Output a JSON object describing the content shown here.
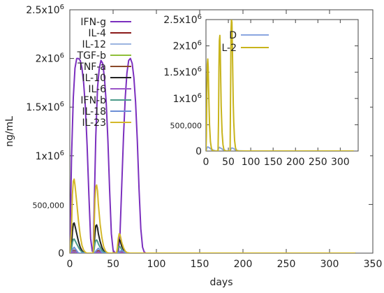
{
  "chart_data": [
    {
      "type": "line",
      "xlabel": "days",
      "ylabel": "ng/mL",
      "xlim": [
        0,
        350
      ],
      "ylim": [
        0,
        2500000
      ],
      "x_ticks": [
        0,
        50,
        100,
        150,
        200,
        250,
        300,
        350
      ],
      "y_ticks": [
        {
          "value": 0,
          "label": "0"
        },
        {
          "value": 500000,
          "label": "500,000"
        },
        {
          "value": 1000000,
          "label": "1x10",
          "exp": "6"
        },
        {
          "value": 1500000,
          "label": "1.5x10",
          "exp": "6"
        },
        {
          "value": 2000000,
          "label": "2x10",
          "exp": "6"
        },
        {
          "value": 2500000,
          "label": "2.5x10",
          "exp": "6"
        }
      ],
      "grid": false,
      "legend_position": "top-left",
      "series": [
        {
          "name": "IFN-g",
          "color": "#7b2fbe",
          "x": [
            0,
            2,
            4,
            6,
            8,
            10,
            12,
            14,
            16,
            18,
            20,
            22,
            24,
            26,
            27,
            28,
            30,
            32,
            34,
            36,
            38,
            40,
            42,
            44,
            46,
            48,
            50,
            52,
            54,
            55,
            56,
            58,
            60,
            62,
            64,
            66,
            68,
            70,
            72,
            74,
            76,
            78,
            80,
            82,
            84,
            86,
            88,
            90,
            95,
            100,
            330
          ],
          "y": [
            0,
            1000000,
            1600000,
            1900000,
            2000000,
            2000000,
            1980000,
            1900000,
            1750000,
            1500000,
            1100000,
            600000,
            150000,
            20000,
            10000,
            400000,
            1200000,
            1700000,
            1900000,
            1980000,
            1950000,
            1800000,
            1550000,
            1150000,
            650000,
            200000,
            30000,
            5000,
            0,
            0,
            0,
            200000,
            700000,
            1200000,
            1600000,
            1850000,
            1980000,
            2000000,
            1950000,
            1800000,
            1550000,
            1150000,
            650000,
            250000,
            60000,
            10000,
            0,
            0,
            0,
            0,
            0
          ]
        },
        {
          "name": "IL-4",
          "color": "#8b1a1a",
          "x": [
            0,
            5,
            10,
            28,
            33,
            38,
            55,
            60,
            65,
            330
          ],
          "y": [
            0,
            30000,
            0,
            0,
            25000,
            0,
            0,
            20000,
            0,
            0
          ]
        },
        {
          "name": "IL-12",
          "color": "#9bb4e0",
          "x": [
            0,
            5,
            10,
            28,
            33,
            38,
            55,
            60,
            65,
            330
          ],
          "y": [
            0,
            20000,
            0,
            0,
            15000,
            0,
            0,
            10000,
            0,
            0
          ]
        },
        {
          "name": "TGF-b",
          "color": "#8fbf3a",
          "x": [
            0,
            5,
            10,
            28,
            33,
            38,
            55,
            60,
            65,
            330
          ],
          "y": [
            0,
            10000,
            0,
            0,
            8000,
            0,
            0,
            6000,
            0,
            0
          ]
        },
        {
          "name": "TNF-a",
          "color": "#8b4a2a",
          "x": [
            0,
            5,
            10,
            28,
            33,
            38,
            55,
            60,
            65,
            330
          ],
          "y": [
            0,
            15000,
            0,
            0,
            12000,
            0,
            0,
            8000,
            0,
            0
          ]
        },
        {
          "name": "IL-10",
          "color": "#222222",
          "x": [
            0,
            2,
            3,
            4,
            5,
            6,
            8,
            10,
            12,
            14,
            16,
            18,
            20,
            27,
            28,
            29,
            30,
            31,
            32,
            33,
            35,
            37,
            39,
            41,
            43,
            45,
            47,
            54,
            55,
            56,
            57,
            58,
            59,
            60,
            62,
            64,
            66,
            68,
            70,
            72,
            330
          ],
          "y": [
            0,
            80000,
            220000,
            300000,
            310000,
            280000,
            200000,
            120000,
            60000,
            25000,
            8000,
            2000,
            0,
            0,
            70000,
            200000,
            280000,
            290000,
            260000,
            200000,
            120000,
            60000,
            25000,
            8000,
            2000,
            0,
            0,
            0,
            40000,
            110000,
            140000,
            130000,
            100000,
            70000,
            35000,
            12000,
            4000,
            1000,
            0,
            0,
            0
          ]
        },
        {
          "name": "IL-6",
          "color": "#9b55c8",
          "x": [
            0,
            5,
            10,
            28,
            33,
            38,
            55,
            60,
            65,
            330
          ],
          "y": [
            0,
            12000,
            0,
            0,
            9000,
            0,
            0,
            6000,
            0,
            0
          ]
        },
        {
          "name": "IFN-b",
          "color": "#4a9a8a",
          "x": [
            0,
            2,
            3,
            4,
            5,
            6,
            8,
            10,
            12,
            14,
            16,
            18,
            20,
            27,
            28,
            29,
            30,
            31,
            32,
            33,
            35,
            37,
            39,
            41,
            43,
            45,
            47,
            54,
            55,
            56,
            57,
            58,
            59,
            60,
            62,
            64,
            66,
            68,
            70,
            72,
            330
          ],
          "y": [
            0,
            40000,
            110000,
            140000,
            145000,
            130000,
            95000,
            60000,
            30000,
            12000,
            4000,
            1000,
            0,
            0,
            35000,
            100000,
            130000,
            135000,
            120000,
            95000,
            60000,
            30000,
            12000,
            4000,
            1000,
            0,
            0,
            0,
            20000,
            55000,
            70000,
            65000,
            50000,
            35000,
            17000,
            6000,
            2000,
            500,
            0,
            0,
            0
          ]
        },
        {
          "name": "IL-18",
          "color": "#6d8fd6",
          "x": [
            0,
            5,
            10,
            28,
            33,
            38,
            55,
            60,
            65,
            330
          ],
          "y": [
            0,
            60000,
            0,
            0,
            50000,
            0,
            0,
            30000,
            0,
            0
          ]
        },
        {
          "name": "IL-23",
          "color": "#d4b82a",
          "x": [
            0,
            2,
            3,
            4,
            5,
            6,
            8,
            10,
            12,
            14,
            16,
            18,
            20,
            27,
            28,
            29,
            30,
            31,
            32,
            33,
            35,
            37,
            39,
            41,
            43,
            45,
            47,
            54,
            55,
            56,
            57,
            58,
            59,
            60,
            62,
            64,
            66,
            68,
            70,
            72,
            330
          ],
          "y": [
            0,
            250000,
            600000,
            740000,
            760000,
            700000,
            520000,
            330000,
            180000,
            80000,
            30000,
            8000,
            0,
            0,
            220000,
            550000,
            680000,
            700000,
            640000,
            500000,
            300000,
            160000,
            70000,
            25000,
            6000,
            0,
            0,
            0,
            60000,
            150000,
            200000,
            190000,
            150000,
            110000,
            55000,
            20000,
            6000,
            1500,
            0,
            0,
            0
          ]
        }
      ]
    },
    {
      "type": "line",
      "xlim": [
        0,
        340
      ],
      "ylim": [
        0,
        2500000
      ],
      "x_ticks": [
        0,
        50,
        100,
        150,
        200,
        250,
        300
      ],
      "y_ticks": [
        {
          "value": 0,
          "label": "0"
        },
        {
          "value": 500000,
          "label": "500,000"
        },
        {
          "value": 1000000,
          "label": "1x10",
          "exp": "6"
        },
        {
          "value": 1500000,
          "label": "1.5x10",
          "exp": "6"
        },
        {
          "value": 2000000,
          "label": "2x10",
          "exp": "6"
        },
        {
          "value": 2500000,
          "label": "2.5x10",
          "exp": "6"
        }
      ],
      "grid": false,
      "legend_position": "top-left",
      "series": [
        {
          "name": "D",
          "color": "#8aa6e0",
          "x": [
            0,
            2,
            4,
            8,
            12,
            20,
            26,
            28,
            30,
            34,
            38,
            46,
            54,
            56,
            58,
            62,
            66,
            74,
            90,
            330
          ],
          "y": [
            0,
            60000,
            80000,
            60000,
            30000,
            5000,
            0,
            50000,
            70000,
            50000,
            25000,
            3000,
            0,
            45000,
            60000,
            45000,
            20000,
            3000,
            0,
            0
          ]
        },
        {
          "name": "L-2",
          "color": "#c8b41c",
          "x": [
            0,
            1,
            2,
            3,
            4,
            5,
            6,
            7,
            8,
            10,
            12,
            14,
            16,
            18,
            20,
            27,
            28,
            29,
            30,
            31,
            32,
            33,
            34,
            36,
            38,
            40,
            42,
            44,
            46,
            54,
            55,
            56,
            57,
            58,
            59,
            60,
            61,
            62,
            64,
            66,
            68,
            70,
            72,
            74,
            330
          ],
          "y": [
            0,
            300000,
            1100000,
            1650000,
            1750000,
            1600000,
            1200000,
            800000,
            500000,
            180000,
            60000,
            15000,
            4000,
            1000,
            0,
            0,
            600000,
            1600000,
            2100000,
            2200000,
            1900000,
            1300000,
            850000,
            350000,
            120000,
            35000,
            8000,
            2000,
            0,
            0,
            1200000,
            2300000,
            2500000,
            2450000,
            2000000,
            1400000,
            900000,
            550000,
            200000,
            60000,
            15000,
            4000,
            1000,
            0,
            0
          ]
        }
      ]
    }
  ]
}
